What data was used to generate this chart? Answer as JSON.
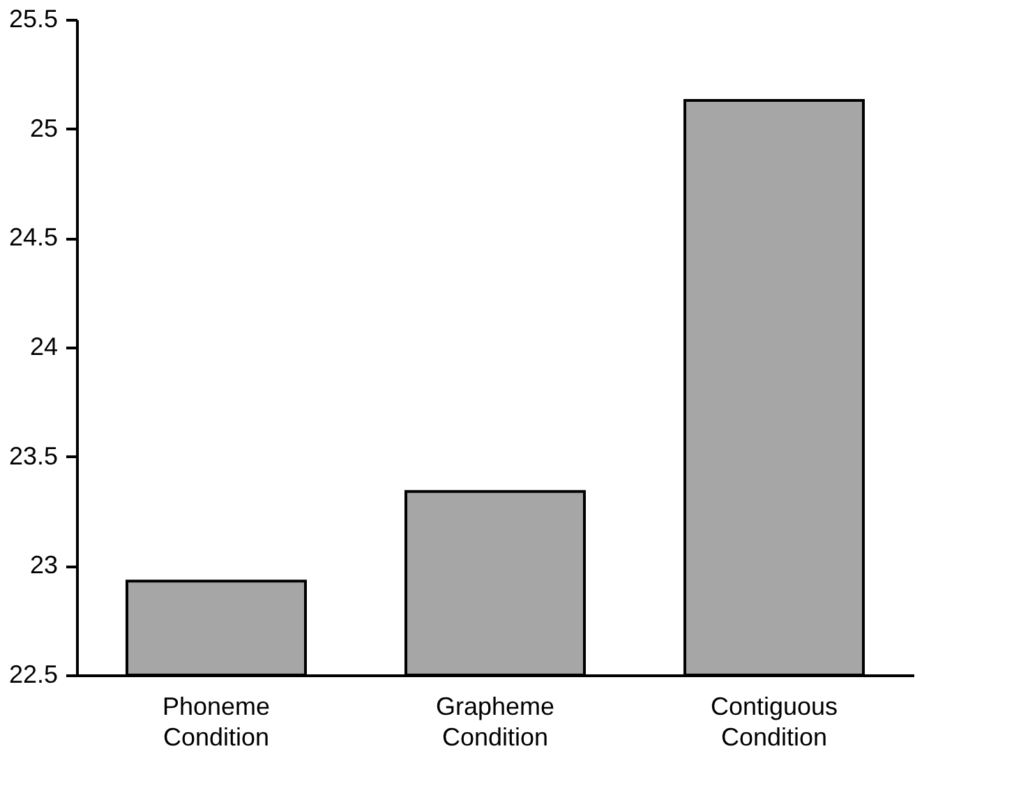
{
  "chart_data": {
    "type": "bar",
    "categories": [
      "Phoneme Condition",
      "Grapheme Condition",
      "Contiguous Condition"
    ],
    "values": [
      22.93,
      23.34,
      25.13
    ],
    "color": "#a6a6a6",
    "ylim": [
      22.5,
      25.5
    ],
    "yticks": [
      22.5,
      23,
      23.5,
      24,
      24.5,
      25,
      25.5
    ],
    "grid": false
  }
}
